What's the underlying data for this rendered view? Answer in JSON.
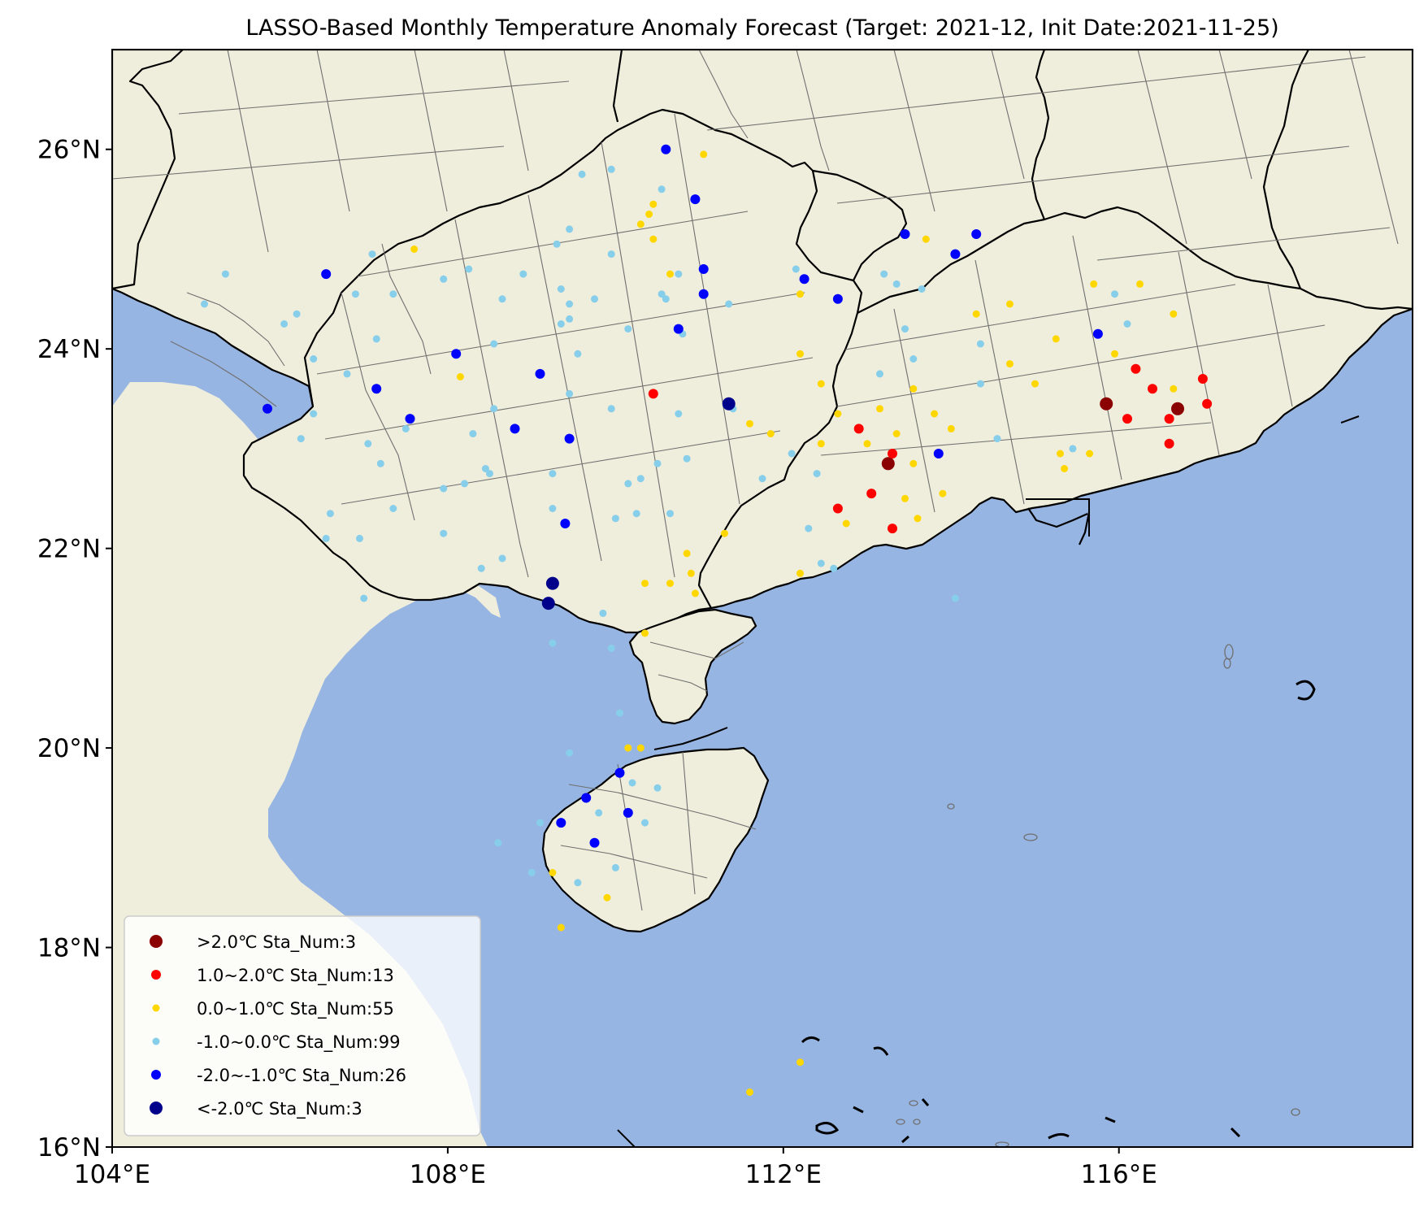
{
  "title": "LASSO-Based Monthly Temperature Anomaly Forecast (Target: 2021-12, Init Date:2021-11-25)",
  "colors": {
    "sea": "#97b5e2",
    "land": "#efeedc",
    "frame": "#000000",
    "boundary": "#6f6f6f"
  },
  "chart_data": {
    "type": "scatter",
    "xlim": [
      104,
      119.5
    ],
    "ylim": [
      16,
      27
    ],
    "x_ticks": [
      {
        "value": 104,
        "label": "104°E"
      },
      {
        "value": 108,
        "label": "108°E"
      },
      {
        "value": 112,
        "label": "112°E"
      },
      {
        "value": 116,
        "label": "116°E"
      }
    ],
    "y_ticks": [
      {
        "value": 16,
        "label": "16°N"
      },
      {
        "value": 18,
        "label": "18°N"
      },
      {
        "value": 20,
        "label": "20°N"
      },
      {
        "value": 22,
        "label": "22°N"
      },
      {
        "value": 24,
        "label": "24°N"
      },
      {
        "value": 26,
        "label": "26°N"
      }
    ],
    "legend": {
      "placement": "lower-left",
      "entries": [
        {
          "label": ">2.0℃ Sta_Num:3",
          "color": "#8b0000"
        },
        {
          "label": "1.0~2.0℃ Sta_Num:13",
          "color": "#ff0000"
        },
        {
          "label": "0.0~1.0℃ Sta_Num:55",
          "color": "#ffd700"
        },
        {
          "label": "-1.0~0.0℃ Sta_Num:99",
          "color": "#87ceeb"
        },
        {
          "label": "-2.0~-1.0℃ Sta_Num:26",
          "color": "#0000ff"
        },
        {
          "label": "<-2.0℃ Sta_Num:3",
          "color": "#00008b"
        }
      ]
    },
    "series": [
      {
        "class": "gt2",
        "color": "#8b0000",
        "points": [
          [
            113.25,
            22.85
          ],
          [
            115.85,
            23.45
          ],
          [
            116.7,
            23.4
          ]
        ]
      },
      {
        "class": "1to2",
        "color": "#ff0000",
        "points": [
          [
            110.45,
            23.55
          ],
          [
            112.65,
            22.4
          ],
          [
            112.9,
            23.2
          ],
          [
            113.05,
            22.55
          ],
          [
            113.3,
            22.95
          ],
          [
            113.3,
            22.2
          ],
          [
            116.1,
            23.3
          ],
          [
            116.2,
            23.8
          ],
          [
            116.4,
            23.6
          ],
          [
            116.6,
            23.05
          ],
          [
            116.6,
            23.3
          ],
          [
            117.0,
            23.7
          ],
          [
            117.05,
            23.45
          ]
        ]
      },
      {
        "class": "0to1",
        "color": "#ffd700",
        "points": [
          [
            107.6,
            25.0
          ],
          [
            108.15,
            23.72
          ],
          [
            110.3,
            25.25
          ],
          [
            110.45,
            25.45
          ],
          [
            110.45,
            25.1
          ],
          [
            110.65,
            24.75
          ],
          [
            110.4,
            25.35
          ],
          [
            111.05,
            25.95
          ],
          [
            111.6,
            23.25
          ],
          [
            111.85,
            23.15
          ],
          [
            110.85,
            21.95
          ],
          [
            110.9,
            21.75
          ],
          [
            110.95,
            21.55
          ],
          [
            110.65,
            21.65
          ],
          [
            110.35,
            21.65
          ],
          [
            110.35,
            21.15
          ],
          [
            110.15,
            20.0
          ],
          [
            110.3,
            20.0
          ],
          [
            112.2,
            24.55
          ],
          [
            112.2,
            23.95
          ],
          [
            112.45,
            23.65
          ],
          [
            112.45,
            23.05
          ],
          [
            112.65,
            23.35
          ],
          [
            112.75,
            22.25
          ],
          [
            113.0,
            23.05
          ],
          [
            113.15,
            23.4
          ],
          [
            113.35,
            23.15
          ],
          [
            113.55,
            23.6
          ],
          [
            113.45,
            22.5
          ],
          [
            113.6,
            22.3
          ],
          [
            113.8,
            23.35
          ],
          [
            113.9,
            22.55
          ],
          [
            113.7,
            25.1
          ],
          [
            114.3,
            24.35
          ],
          [
            114.7,
            24.45
          ],
          [
            114.7,
            23.85
          ],
          [
            115.0,
            23.65
          ],
          [
            115.25,
            24.1
          ],
          [
            115.3,
            22.95
          ],
          [
            115.35,
            22.8
          ],
          [
            115.65,
            22.95
          ],
          [
            115.95,
            23.95
          ],
          [
            115.7,
            24.65
          ],
          [
            116.25,
            24.65
          ],
          [
            116.65,
            24.35
          ],
          [
            116.65,
            23.6
          ],
          [
            112.2,
            21.75
          ],
          [
            111.3,
            22.15
          ],
          [
            109.25,
            18.75
          ],
          [
            109.35,
            18.2
          ],
          [
            109.9,
            18.5
          ],
          [
            112.2,
            16.85
          ],
          [
            111.6,
            16.55
          ],
          [
            113.55,
            22.85
          ],
          [
            114.0,
            23.2
          ]
        ]
      },
      {
        "class": "m1to0",
        "color": "#87ceeb",
        "points": [
          [
            105.35,
            24.75
          ],
          [
            105.1,
            24.45
          ],
          [
            106.05,
            24.25
          ],
          [
            106.2,
            24.35
          ],
          [
            106.4,
            23.9
          ],
          [
            106.4,
            23.35
          ],
          [
            106.25,
            23.1
          ],
          [
            106.55,
            22.1
          ],
          [
            106.6,
            22.35
          ],
          [
            106.9,
            24.55
          ],
          [
            107.1,
            24.95
          ],
          [
            107.15,
            24.1
          ],
          [
            107.35,
            24.55
          ],
          [
            106.8,
            23.75
          ],
          [
            107.05,
            23.05
          ],
          [
            107.2,
            22.85
          ],
          [
            107.35,
            22.4
          ],
          [
            107.5,
            23.2
          ],
          [
            106.95,
            22.1
          ],
          [
            107.95,
            24.7
          ],
          [
            108.25,
            24.8
          ],
          [
            107.95,
            22.6
          ],
          [
            107.95,
            22.15
          ],
          [
            108.2,
            22.65
          ],
          [
            108.3,
            23.15
          ],
          [
            108.55,
            24.05
          ],
          [
            108.65,
            24.5
          ],
          [
            108.55,
            23.4
          ],
          [
            108.45,
            22.8
          ],
          [
            108.5,
            22.75
          ],
          [
            108.4,
            21.8
          ],
          [
            108.65,
            21.9
          ],
          [
            108.9,
            24.75
          ],
          [
            109.3,
            25.05
          ],
          [
            109.45,
            25.2
          ],
          [
            109.35,
            24.6
          ],
          [
            109.45,
            24.45
          ],
          [
            109.45,
            24.3
          ],
          [
            109.35,
            24.25
          ],
          [
            109.6,
            25.75
          ],
          [
            109.75,
            24.5
          ],
          [
            109.55,
            23.95
          ],
          [
            109.45,
            23.55
          ],
          [
            109.25,
            22.75
          ],
          [
            109.25,
            22.4
          ],
          [
            109.95,
            25.8
          ],
          [
            109.95,
            24.95
          ],
          [
            110.15,
            24.2
          ],
          [
            109.95,
            23.4
          ],
          [
            110.15,
            22.65
          ],
          [
            110.0,
            22.3
          ],
          [
            110.25,
            22.35
          ],
          [
            110.3,
            22.7
          ],
          [
            110.5,
            22.85
          ],
          [
            110.6,
            24.5
          ],
          [
            110.55,
            24.55
          ],
          [
            110.75,
            24.75
          ],
          [
            110.8,
            24.15
          ],
          [
            110.75,
            23.35
          ],
          [
            110.65,
            22.35
          ],
          [
            110.85,
            22.9
          ],
          [
            111.35,
            24.45
          ],
          [
            111.4,
            23.4
          ],
          [
            110.55,
            25.6
          ],
          [
            112.15,
            24.8
          ],
          [
            112.1,
            22.95
          ],
          [
            112.3,
            22.2
          ],
          [
            112.4,
            22.75
          ],
          [
            111.75,
            22.7
          ],
          [
            112.45,
            21.85
          ],
          [
            112.6,
            21.8
          ],
          [
            113.15,
            23.75
          ],
          [
            113.2,
            24.75
          ],
          [
            113.45,
            24.2
          ],
          [
            113.35,
            24.65
          ],
          [
            113.65,
            24.6
          ],
          [
            113.55,
            23.9
          ],
          [
            114.35,
            23.65
          ],
          [
            114.55,
            23.1
          ],
          [
            114.35,
            24.05
          ],
          [
            115.45,
            23.0
          ],
          [
            115.95,
            24.55
          ],
          [
            116.1,
            24.25
          ],
          [
            114.05,
            21.5
          ],
          [
            109.85,
            21.35
          ],
          [
            109.95,
            21.0
          ],
          [
            110.05,
            20.35
          ],
          [
            109.25,
            21.05
          ],
          [
            109.45,
            19.95
          ],
          [
            109.8,
            19.35
          ],
          [
            109.1,
            19.25
          ],
          [
            108.6,
            19.05
          ],
          [
            109.0,
            18.75
          ],
          [
            109.55,
            18.65
          ],
          [
            110.0,
            18.8
          ],
          [
            110.35,
            19.25
          ],
          [
            110.5,
            19.6
          ],
          [
            110.2,
            19.65
          ],
          [
            107.0,
            21.5
          ]
        ]
      },
      {
        "class": "m2tom1",
        "color": "#0000ff",
        "points": [
          [
            106.55,
            24.75
          ],
          [
            105.85,
            23.4
          ],
          [
            107.15,
            23.6
          ],
          [
            107.55,
            23.3
          ],
          [
            108.1,
            23.95
          ],
          [
            108.8,
            23.2
          ],
          [
            109.1,
            23.75
          ],
          [
            109.45,
            23.1
          ],
          [
            109.4,
            22.25
          ],
          [
            110.6,
            26.0
          ],
          [
            110.95,
            25.5
          ],
          [
            111.05,
            24.8
          ],
          [
            111.05,
            24.55
          ],
          [
            110.75,
            24.2
          ],
          [
            112.25,
            24.7
          ],
          [
            112.65,
            24.5
          ],
          [
            113.45,
            25.15
          ],
          [
            114.05,
            24.95
          ],
          [
            114.3,
            25.15
          ],
          [
            115.75,
            24.15
          ],
          [
            113.85,
            22.95
          ],
          [
            109.65,
            19.5
          ],
          [
            109.35,
            19.25
          ],
          [
            110.05,
            19.75
          ],
          [
            110.15,
            19.35
          ],
          [
            109.75,
            19.05
          ]
        ]
      },
      {
        "class": "lt2",
        "color": "#00008b",
        "points": [
          [
            111.35,
            23.45
          ],
          [
            109.25,
            21.65
          ],
          [
            109.2,
            21.45
          ]
        ]
      }
    ]
  }
}
